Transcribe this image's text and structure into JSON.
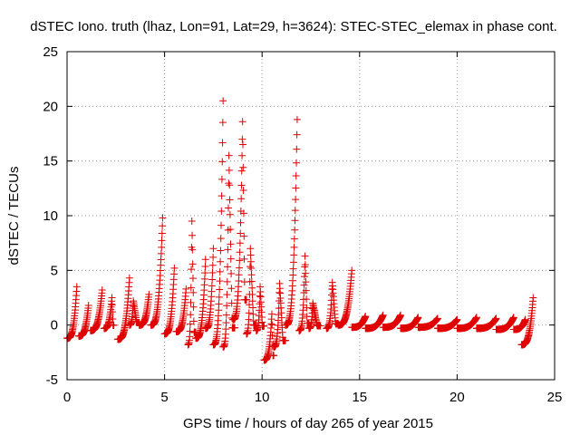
{
  "chart_data": {
    "type": "scatter",
    "title": "dSTEC Iono. truth (lhaz, Lon=91, Lat=29, h=3624): STEC-STEC_elemax in phase cont.",
    "xlabel": "GPS time / hours of day 265 of year 2015",
    "ylabel": "dSTEC  / TECUs",
    "xlim": [
      0,
      25
    ],
    "ylim": [
      -5,
      25
    ],
    "xticks": [
      "0",
      "5",
      "10",
      "15",
      "20",
      "25"
    ],
    "yticks": [
      "-5",
      "0",
      "5",
      "10",
      "15",
      "20",
      "25"
    ],
    "grid": true,
    "marker": "+",
    "marker_color": "#e00000",
    "arcs": [
      {
        "t0": 0.0,
        "t1": 0.5,
        "v0": -1.2,
        "v1": 3.5,
        "peak": 3.5,
        "pt": 0.5
      },
      {
        "t0": 0.6,
        "t1": 1.1,
        "v0": -1.0,
        "v1": 1.8,
        "peak": 1.8,
        "pt": 1.1
      },
      {
        "t0": 1.2,
        "t1": 1.8,
        "v0": -0.5,
        "v1": 3.2,
        "peak": 3.2,
        "pt": 1.8
      },
      {
        "t0": 1.9,
        "t1": 2.4,
        "v0": -0.3,
        "v1": 2.5,
        "peak": 2.5,
        "pt": 2.3
      },
      {
        "t0": 2.6,
        "t1": 3.2,
        "v0": -1.3,
        "v1": 4.3,
        "peak": 4.3,
        "pt": 3.2
      },
      {
        "t0": 3.2,
        "t1": 3.7,
        "v0": 0.0,
        "v1": 2.2,
        "peak": 2.2,
        "pt": 3.4
      },
      {
        "t0": 3.7,
        "t1": 4.2,
        "v0": 0.0,
        "v1": 2.8,
        "peak": 2.8,
        "pt": 4.2
      },
      {
        "t0": 4.3,
        "t1": 4.9,
        "v0": 0.0,
        "v1": 9.8,
        "peak": 9.8,
        "pt": 4.9
      },
      {
        "t0": 5.0,
        "t1": 5.5,
        "v0": -0.8,
        "v1": 5.2,
        "peak": 5.2,
        "pt": 5.5
      },
      {
        "t0": 5.6,
        "t1": 6.1,
        "v0": -0.6,
        "v1": 3.3,
        "peak": 3.3,
        "pt": 6.1
      },
      {
        "t0": 6.2,
        "t1": 6.6,
        "v0": -1.8,
        "v1": 9.5,
        "peak": 9.5,
        "pt": 6.4
      },
      {
        "t0": 6.6,
        "t1": 7.1,
        "v0": -1.2,
        "v1": 6.0,
        "peak": 6.0,
        "pt": 7.1
      },
      {
        "t0": 7.1,
        "t1": 7.5,
        "v0": -0.3,
        "v1": 7.0,
        "peak": 7.0,
        "pt": 7.5
      },
      {
        "t0": 7.5,
        "t1": 8.0,
        "v0": -1.8,
        "v1": 20.5,
        "peak": 20.5,
        "pt": 8.0
      },
      {
        "t0": 8.0,
        "t1": 8.6,
        "v0": -2.0,
        "v1": 15.5,
        "peak": 15.5,
        "pt": 8.3
      },
      {
        "t0": 8.5,
        "t1": 9.2,
        "v0": 0.5,
        "v1": 18.6,
        "peak": 18.6,
        "pt": 9.0
      },
      {
        "t0": 9.2,
        "t1": 9.7,
        "v0": -0.8,
        "v1": 7.0,
        "peak": 7.0,
        "pt": 9.4
      },
      {
        "t0": 9.7,
        "t1": 10.1,
        "v0": -0.5,
        "v1": 3.5,
        "peak": 3.5,
        "pt": 9.9
      },
      {
        "t0": 10.1,
        "t1": 10.6,
        "v0": -3.2,
        "v1": 1.0,
        "peak": 1.0,
        "pt": 10.5
      },
      {
        "t0": 10.6,
        "t1": 11.2,
        "v0": -2.0,
        "v1": 3.8,
        "peak": 3.8,
        "pt": 10.9
      },
      {
        "t0": 11.2,
        "t1": 11.8,
        "v0": 0.0,
        "v1": 18.8,
        "peak": 18.8,
        "pt": 11.8
      },
      {
        "t0": 11.9,
        "t1": 12.4,
        "v0": -0.5,
        "v1": 6.3,
        "peak": 6.3,
        "pt": 12.2
      },
      {
        "t0": 12.4,
        "t1": 13.0,
        "v0": -0.3,
        "v1": 2.0,
        "peak": 2.0,
        "pt": 12.6
      },
      {
        "t0": 13.3,
        "t1": 13.9,
        "v0": -0.3,
        "v1": 3.9,
        "peak": 3.9,
        "pt": 13.6
      },
      {
        "t0": 13.9,
        "t1": 14.6,
        "v0": 0.0,
        "v1": 5.0,
        "peak": 5.0,
        "pt": 14.6
      },
      {
        "t0": 14.6,
        "t1": 15.3,
        "v0": -0.2,
        "v1": 0.8,
        "peak": 0.8,
        "pt": 15.3
      },
      {
        "t0": 15.3,
        "t1": 16.2,
        "v0": -0.3,
        "v1": 0.9,
        "peak": 0.9,
        "pt": 16.2
      },
      {
        "t0": 16.2,
        "t1": 17.1,
        "v0": -0.2,
        "v1": 0.9,
        "peak": 0.9,
        "pt": 17.1
      },
      {
        "t0": 17.1,
        "t1": 18.0,
        "v0": -0.3,
        "v1": 0.7,
        "peak": 0.7,
        "pt": 18.0
      },
      {
        "t0": 18.0,
        "t1": 19.0,
        "v0": -0.2,
        "v1": 0.6,
        "peak": 0.6,
        "pt": 19.0
      },
      {
        "t0": 19.0,
        "t1": 20.0,
        "v0": -0.3,
        "v1": 0.5,
        "peak": 0.5,
        "pt": 20.0
      },
      {
        "t0": 20.0,
        "t1": 21.0,
        "v0": -0.3,
        "v1": 0.7,
        "peak": 0.7,
        "pt": 21.0
      },
      {
        "t0": 21.0,
        "t1": 22.0,
        "v0": -0.3,
        "v1": 0.6,
        "peak": 0.6,
        "pt": 22.0
      },
      {
        "t0": 22.0,
        "t1": 22.9,
        "v0": -0.4,
        "v1": 0.7,
        "peak": 0.7,
        "pt": 22.9
      },
      {
        "t0": 22.9,
        "t1": 23.5,
        "v0": -0.4,
        "v1": 0.5,
        "peak": 0.5,
        "pt": 23.5
      },
      {
        "t0": 23.3,
        "t1": 23.9,
        "v0": -1.8,
        "v1": 2.5,
        "peak": 2.5,
        "pt": 23.9
      }
    ]
  }
}
